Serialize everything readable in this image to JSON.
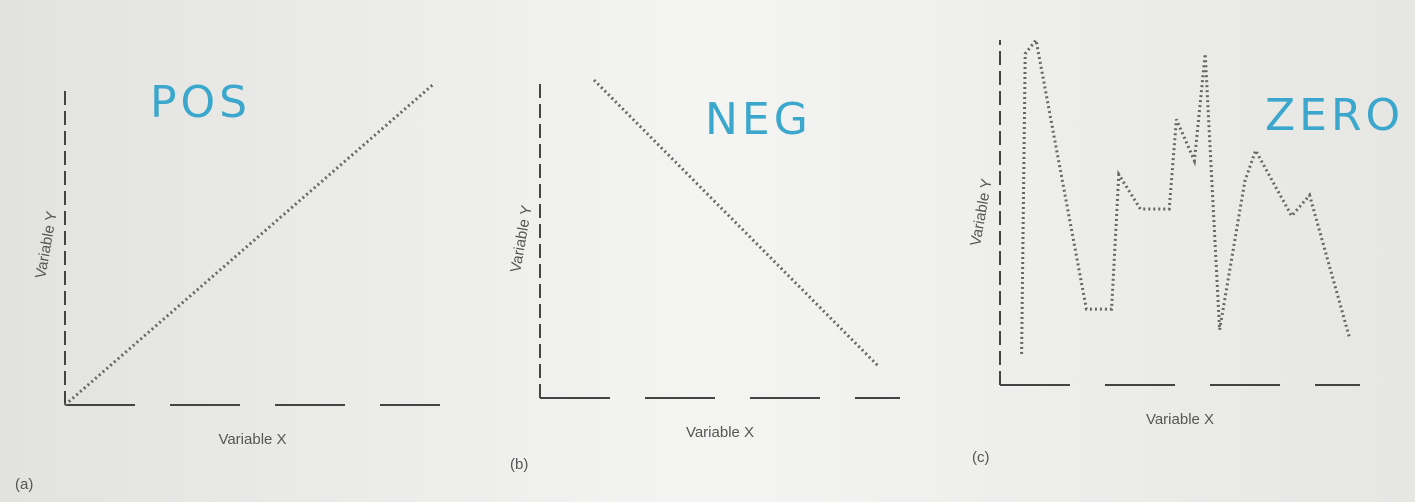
{
  "chart_data": [
    {
      "type": "line",
      "panel_label": "(a)",
      "annotation": "POS",
      "x_label": "Variable X",
      "y_label": "Variable Y",
      "x": [
        0,
        9.8
      ],
      "values": [
        0,
        10
      ],
      "color": "#666666",
      "xlim": [
        0,
        10
      ],
      "ylim": [
        0,
        10
      ]
    },
    {
      "type": "line",
      "panel_label": "(b)",
      "annotation": "NEG",
      "x_label": "Variable X",
      "y_label": "Variable Y",
      "x": [
        1.5,
        9.4
      ],
      "values": [
        10,
        1
      ],
      "color": "#666666",
      "xlim": [
        0,
        10
      ],
      "ylim": [
        0,
        10
      ]
    },
    {
      "type": "line",
      "panel_label": "(c)",
      "annotation": "ZERO",
      "x_label": "Variable X",
      "y_label": "Variable Y",
      "x": [
        0.6,
        0.7,
        1.0,
        2.4,
        3.1,
        3.3,
        3.9,
        4.7,
        4.9,
        5.4,
        5.7,
        6.1,
        6.8,
        7.1,
        8.1,
        8.6,
        9.7
      ],
      "values": [
        0.9,
        9.6,
        10,
        2.2,
        2.2,
        6.1,
        5.1,
        5.1,
        7.7,
        6.5,
        9.6,
        1.6,
        5.9,
        6.8,
        4.9,
        5.5,
        1.4
      ],
      "color": "#666666",
      "xlim": [
        0,
        10
      ],
      "ylim": [
        0,
        10
      ]
    }
  ]
}
